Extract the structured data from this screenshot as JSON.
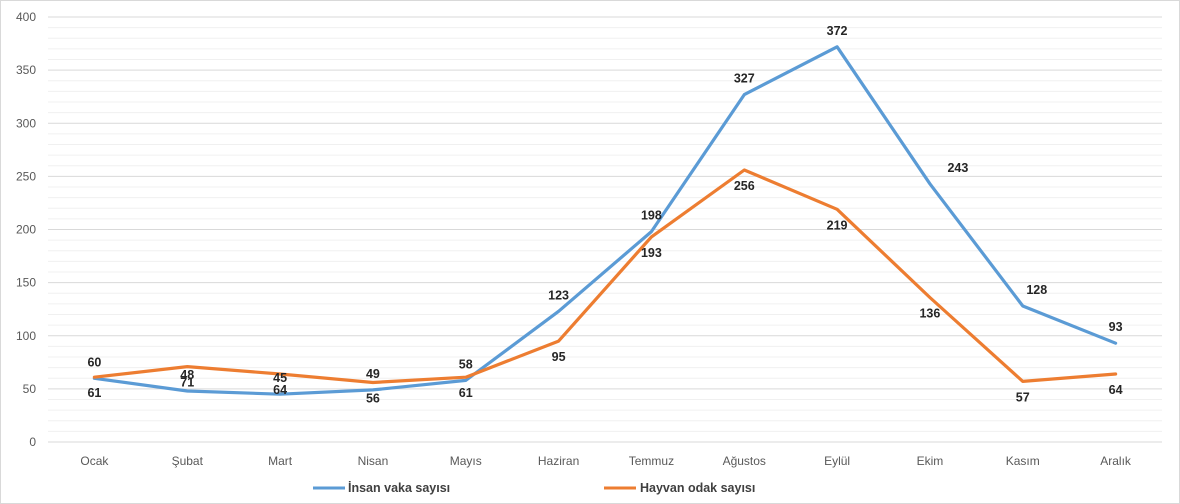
{
  "chart_data": {
    "type": "line",
    "title": "",
    "xlabel": "",
    "ylabel": "",
    "categories": [
      "Ocak",
      "Şubat",
      "Mart",
      "Nisan",
      "Mayıs",
      "Haziran",
      "Temmuz",
      "Ağustos",
      "Eylül",
      "Ekim",
      "Kasım",
      "Aralık"
    ],
    "ylim": [
      0,
      400
    ],
    "yticks": [
      0,
      50,
      100,
      150,
      200,
      250,
      300,
      350,
      400
    ],
    "grid": true,
    "legend_position": "bottom",
    "series": [
      {
        "name": "İnsan vaka sayısı",
        "color": "#5B9BD5",
        "values": [
          60,
          48,
          45,
          49,
          58,
          123,
          198,
          327,
          372,
          243,
          128,
          93
        ]
      },
      {
        "name": "Hayvan odak sayısı",
        "color": "#ED7D31",
        "values": [
          61,
          71,
          64,
          56,
          61,
          95,
          193,
          256,
          219,
          136,
          57,
          64
        ]
      }
    ]
  }
}
